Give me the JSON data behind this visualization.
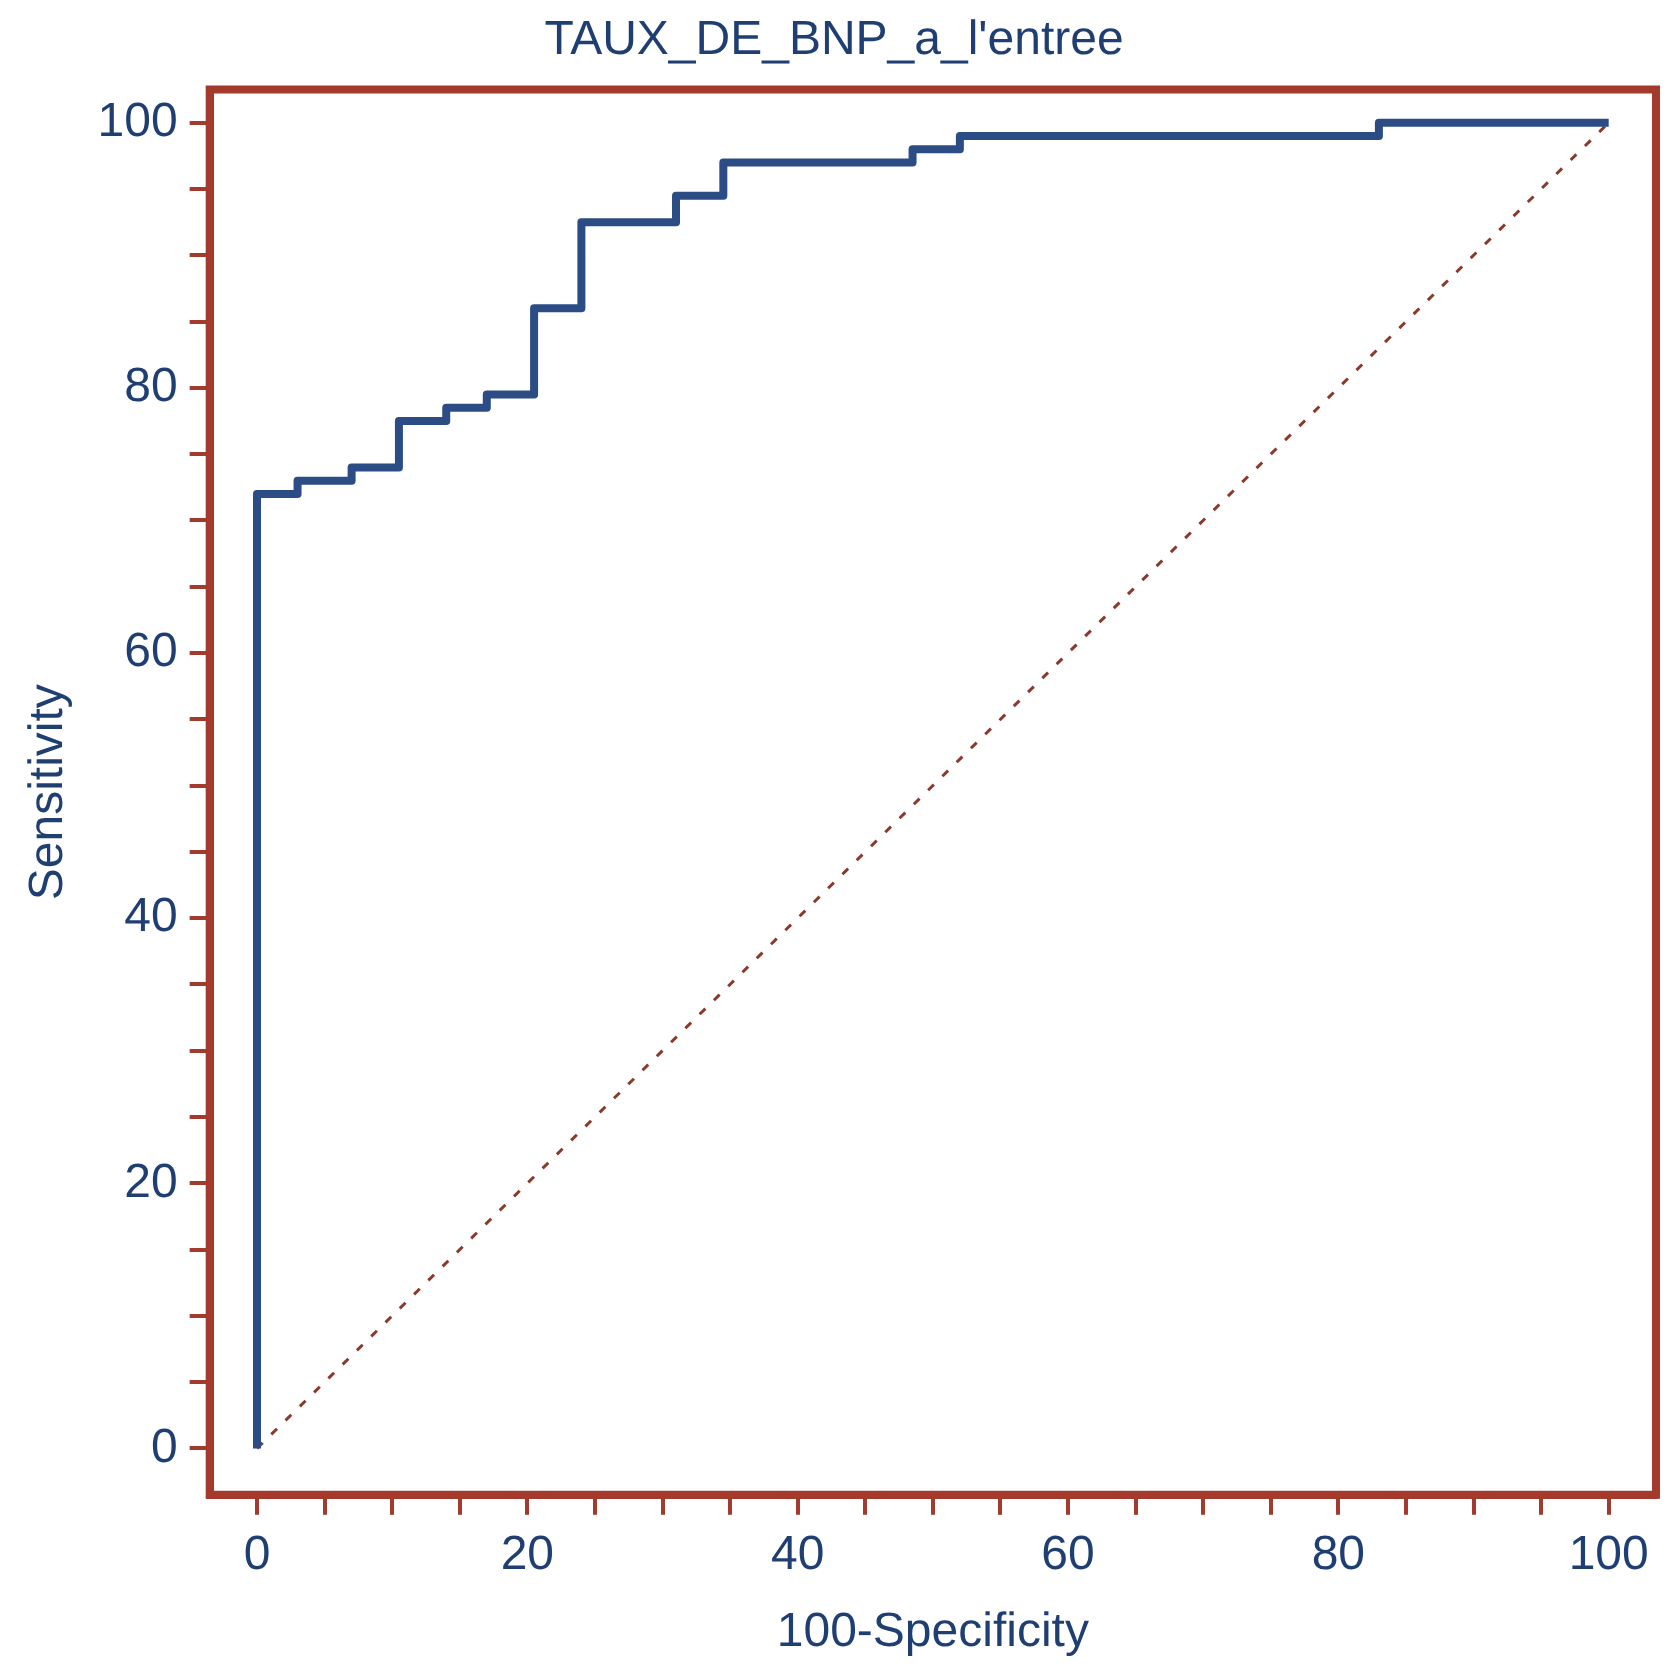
{
  "chart_data": {
    "type": "step",
    "title": "TAUX_DE_BNP_a_l'entree",
    "xlabel": "100-Specificity",
    "ylabel": "Sensitivity",
    "series": [
      {
        "color": "#2b4c85",
        "x": [
          0,
          0,
          3,
          7,
          10.5,
          14,
          17,
          20.5,
          24,
          31,
          34.5,
          48.5,
          52,
          83,
          100
        ],
        "values": [
          0,
          72,
          73,
          74,
          77.5,
          78.5,
          79.5,
          86,
          92.5,
          94.5,
          97,
          98,
          99,
          100,
          100
        ]
      },
      {
        "type": "line",
        "color": "#8b3a2a",
        "line_style": "dashed",
        "marker": "none",
        "x": [
          0,
          100
        ],
        "values": [
          0,
          100
        ]
      }
    ],
    "xlim": [
      -3.5,
      103.5
    ],
    "ylim": [
      -3.5,
      102.5
    ],
    "xticks": [
      0,
      {
        "value": 5,
        "label": null
      },
      {
        "value": 10,
        "label": null
      },
      {
        "value": 15,
        "label": null
      },
      20,
      {
        "value": 25,
        "label": null
      },
      {
        "value": 30,
        "label": null
      },
      {
        "value": 35,
        "label": null
      },
      40,
      {
        "value": 45,
        "label": null
      },
      {
        "value": 50,
        "label": null
      },
      {
        "value": 55,
        "label": null
      },
      60,
      {
        "value": 65,
        "label": null
      },
      {
        "value": 70,
        "label": null
      },
      {
        "value": 75,
        "label": null
      },
      80,
      {
        "value": 85,
        "label": null
      },
      {
        "value": 90,
        "label": null
      },
      {
        "value": 95,
        "label": null
      },
      100
    ],
    "yticks": [
      0,
      {
        "value": 5,
        "label": null
      },
      {
        "value": 10,
        "label": null
      },
      {
        "value": 15,
        "label": null
      },
      20,
      {
        "value": 25,
        "label": null
      },
      {
        "value": 30,
        "label": null
      },
      {
        "value": 35,
        "label": null
      },
      40,
      {
        "value": 45,
        "label": null
      },
      {
        "value": 50,
        "label": null
      },
      {
        "value": 55,
        "label": null
      },
      60,
      {
        "value": 65,
        "label": null
      },
      {
        "value": 70,
        "label": null
      },
      {
        "value": 75,
        "label": null
      },
      80,
      {
        "value": 85,
        "label": null
      },
      {
        "value": 90,
        "label": null
      },
      {
        "value": 95,
        "label": null
      },
      100
    ],
    "grid": false,
    "legend": false,
    "marker": "none",
    "line_style": "solid"
  }
}
